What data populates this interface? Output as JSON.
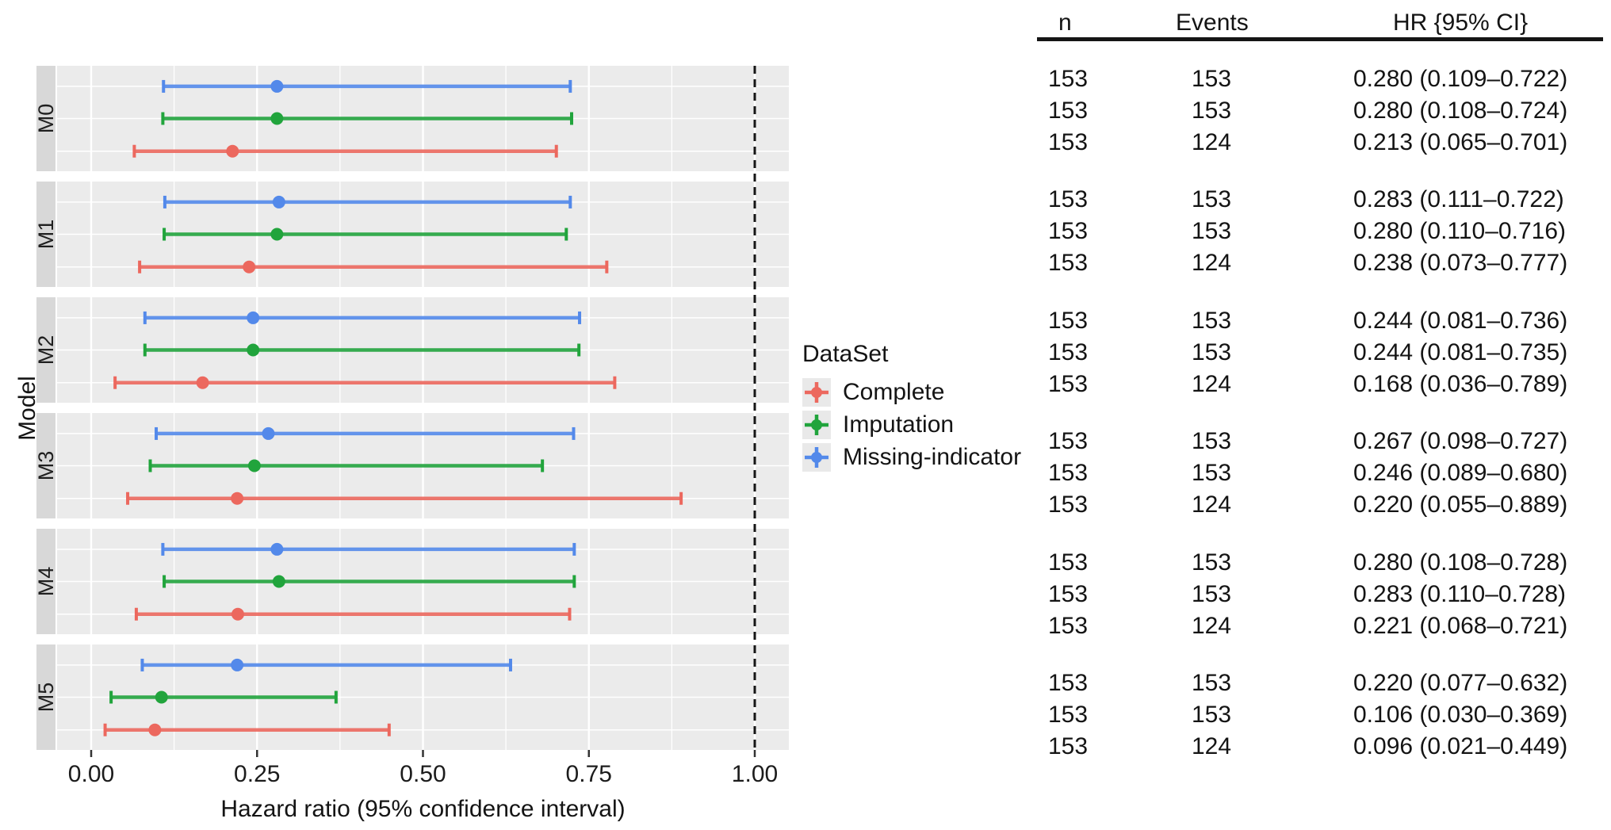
{
  "chart_data": {
    "type": "forest-pointrange",
    "xlabel": "Hazard ratio (95% confidence interval)",
    "ylabel": "Model",
    "x_ticks": [
      0.0,
      0.25,
      0.5,
      0.75,
      1.0
    ],
    "x_tick_labels": [
      "0.00",
      "0.25",
      "0.50",
      "0.75",
      "1.00"
    ],
    "xlim": [
      -0.05,
      1.05
    ],
    "reference_line_x": 1.0,
    "grid": "white major+minor vertical lines and per-row horizontal lines on gray panels",
    "legend_position": "right of plot",
    "panel_bg": "#ebebeb",
    "strip_bg": "#d8d8d8",
    "legend": {
      "title": "DataSet",
      "order": [
        "Complete",
        "Imputation",
        "Missing-indicator"
      ]
    },
    "dataset_colors": {
      "Complete": "#ec685e",
      "Imputation": "#21a43c",
      "Missing-indicator": "#5389ea"
    },
    "models": [
      {
        "name": "M0",
        "rows": [
          {
            "dataset": "Missing-indicator",
            "n": "153",
            "events": "153",
            "hr": 0.28,
            "ci_low": 0.109,
            "ci_high": 0.722,
            "hr_ci_label": "0.280 (0.109–0.722)"
          },
          {
            "dataset": "Imputation",
            "n": "153",
            "events": "153",
            "hr": 0.28,
            "ci_low": 0.108,
            "ci_high": 0.724,
            "hr_ci_label": "0.280 (0.108–0.724)"
          },
          {
            "dataset": "Complete",
            "n": "153",
            "events": "124",
            "hr": 0.213,
            "ci_low": 0.065,
            "ci_high": 0.701,
            "hr_ci_label": "0.213 (0.065–0.701)"
          }
        ]
      },
      {
        "name": "M1",
        "rows": [
          {
            "dataset": "Missing-indicator",
            "n": "153",
            "events": "153",
            "hr": 0.283,
            "ci_low": 0.111,
            "ci_high": 0.722,
            "hr_ci_label": "0.283 (0.111–0.722)"
          },
          {
            "dataset": "Imputation",
            "n": "153",
            "events": "153",
            "hr": 0.28,
            "ci_low": 0.11,
            "ci_high": 0.716,
            "hr_ci_label": "0.280 (0.110–0.716)"
          },
          {
            "dataset": "Complete",
            "n": "153",
            "events": "124",
            "hr": 0.238,
            "ci_low": 0.073,
            "ci_high": 0.777,
            "hr_ci_label": "0.238 (0.073–0.777)"
          }
        ]
      },
      {
        "name": "M2",
        "rows": [
          {
            "dataset": "Missing-indicator",
            "n": "153",
            "events": "153",
            "hr": 0.244,
            "ci_low": 0.081,
            "ci_high": 0.736,
            "hr_ci_label": "0.244 (0.081–0.736)"
          },
          {
            "dataset": "Imputation",
            "n": "153",
            "events": "153",
            "hr": 0.244,
            "ci_low": 0.081,
            "ci_high": 0.735,
            "hr_ci_label": "0.244 (0.081–0.735)"
          },
          {
            "dataset": "Complete",
            "n": "153",
            "events": "124",
            "hr": 0.168,
            "ci_low": 0.036,
            "ci_high": 0.789,
            "hr_ci_label": "0.168 (0.036–0.789)"
          }
        ]
      },
      {
        "name": "M3",
        "rows": [
          {
            "dataset": "Missing-indicator",
            "n": "153",
            "events": "153",
            "hr": 0.267,
            "ci_low": 0.098,
            "ci_high": 0.727,
            "hr_ci_label": "0.267 (0.098–0.727)"
          },
          {
            "dataset": "Imputation",
            "n": "153",
            "events": "153",
            "hr": 0.246,
            "ci_low": 0.089,
            "ci_high": 0.68,
            "hr_ci_label": "0.246 (0.089–0.680)"
          },
          {
            "dataset": "Complete",
            "n": "153",
            "events": "124",
            "hr": 0.22,
            "ci_low": 0.055,
            "ci_high": 0.889,
            "hr_ci_label": "0.220 (0.055–0.889)"
          }
        ]
      },
      {
        "name": "M4",
        "rows": [
          {
            "dataset": "Missing-indicator",
            "n": "153",
            "events": "153",
            "hr": 0.28,
            "ci_low": 0.108,
            "ci_high": 0.728,
            "hr_ci_label": "0.280 (0.108–0.728)"
          },
          {
            "dataset": "Imputation",
            "n": "153",
            "events": "153",
            "hr": 0.283,
            "ci_low": 0.11,
            "ci_high": 0.728,
            "hr_ci_label": "0.283 (0.110–0.728)"
          },
          {
            "dataset": "Complete",
            "n": "153",
            "events": "124",
            "hr": 0.221,
            "ci_low": 0.068,
            "ci_high": 0.721,
            "hr_ci_label": "0.221 (0.068–0.721)"
          }
        ]
      },
      {
        "name": "M5",
        "rows": [
          {
            "dataset": "Missing-indicator",
            "n": "153",
            "events": "153",
            "hr": 0.22,
            "ci_low": 0.077,
            "ci_high": 0.632,
            "hr_ci_label": "0.220 (0.077–0.632)"
          },
          {
            "dataset": "Imputation",
            "n": "153",
            "events": "153",
            "hr": 0.106,
            "ci_low": 0.03,
            "ci_high": 0.369,
            "hr_ci_label": "0.106 (0.030–0.369)"
          },
          {
            "dataset": "Complete",
            "n": "153",
            "events": "124",
            "hr": 0.096,
            "ci_low": 0.021,
            "ci_high": 0.449,
            "hr_ci_label": "0.096 (0.021–0.449)"
          }
        ]
      }
    ]
  },
  "table": {
    "headers": [
      "n",
      "Events",
      "HR {95% CI}"
    ]
  }
}
